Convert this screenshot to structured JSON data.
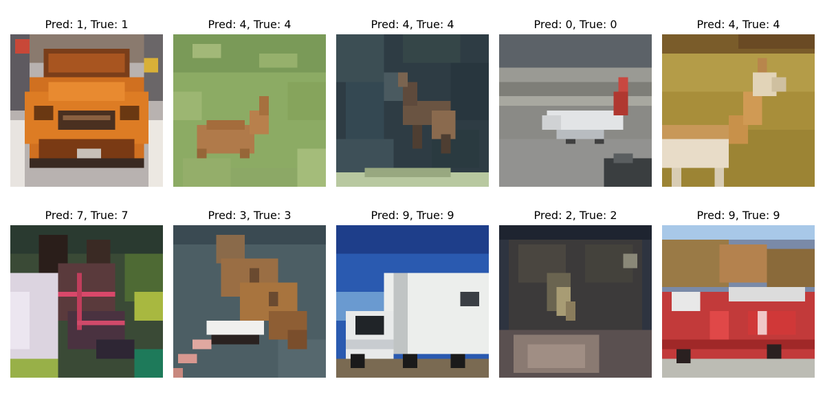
{
  "figure": {
    "panels": [
      {
        "caption": "Pred: 1, True: 1",
        "pred": 1,
        "true": 1,
        "subject": "orange car front view"
      },
      {
        "caption": "Pred: 4, True: 4",
        "pred": 4,
        "true": 4,
        "subject": "deer in grass field"
      },
      {
        "caption": "Pred: 4, True: 4",
        "pred": 4,
        "true": 4,
        "subject": "deer in dark forest"
      },
      {
        "caption": "Pred: 0, True: 0",
        "pred": 0,
        "true": 0,
        "subject": "white airplane on runway"
      },
      {
        "caption": "Pred: 4, True: 4",
        "pred": 4,
        "true": 4,
        "subject": "deer side view on savanna"
      },
      {
        "caption": "Pred: 7, True: 7",
        "pred": 7,
        "true": 7,
        "subject": "horse head with bridle"
      },
      {
        "caption": "Pred: 3, True: 3",
        "pred": 3,
        "true": 3,
        "subject": "cat with striped object"
      },
      {
        "caption": "Pred: 9, True: 9",
        "pred": 9,
        "true": 9,
        "subject": "white truck under blue sky"
      },
      {
        "caption": "Pred: 2, True: 2",
        "pred": 2,
        "true": 2,
        "subject": "blurry bird closeup"
      },
      {
        "caption": "Pred: 9, True: 9",
        "pred": 9,
        "true": 9,
        "subject": "red fire truck"
      }
    ]
  }
}
